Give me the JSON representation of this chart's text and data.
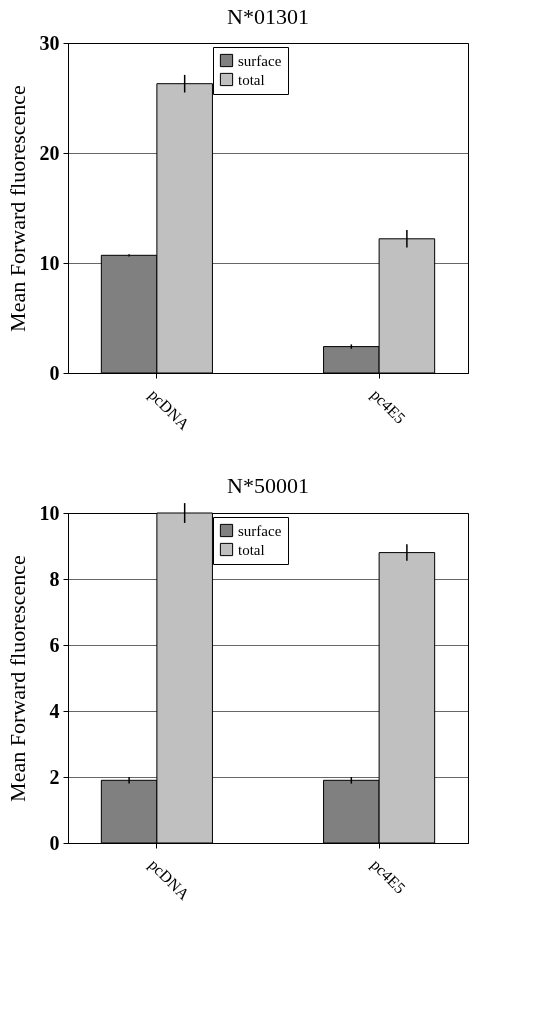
{
  "chart_data": [
    {
      "type": "bar",
      "title": "N*01301",
      "ylabel": "Mean Forward fluorescence",
      "categories": [
        "pcDNA",
        "pc4E5"
      ],
      "series": [
        {
          "name": "surface",
          "color": "#808080",
          "values": [
            10.7,
            2.4
          ],
          "errors": [
            0.1,
            0.2
          ]
        },
        {
          "name": "total",
          "color": "#c0c0c0",
          "values": [
            26.3,
            12.2
          ],
          "errors": [
            0.8,
            0.8
          ]
        }
      ],
      "ylim": [
        0,
        30
      ],
      "yticks": [
        0,
        10,
        20,
        30
      ],
      "grid": "y",
      "legend": "top"
    },
    {
      "type": "bar",
      "title": "N*50001",
      "ylabel": "Mean Forward fluorescence",
      "categories": [
        "pcDNA",
        "pc4E5"
      ],
      "series": [
        {
          "name": "surface",
          "color": "#808080",
          "values": [
            1.9,
            1.9
          ],
          "errors": [
            0.1,
            0.1
          ]
        },
        {
          "name": "total",
          "color": "#c0c0c0",
          "values": [
            10.0,
            8.8
          ],
          "errors": [
            0.3,
            0.25
          ]
        }
      ],
      "ylim": [
        0,
        10
      ],
      "yticks": [
        0,
        2,
        4,
        6,
        8,
        10
      ],
      "grid": "y",
      "legend": "top"
    }
  ]
}
